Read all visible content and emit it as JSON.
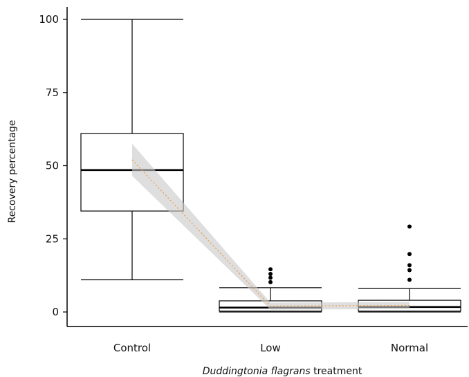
{
  "chart_data": {
    "type": "boxplot",
    "title": "",
    "xlabel_italic": "Duddingtonia flagrans",
    "xlabel_rest": " treatment",
    "ylabel": "Recovery percentage",
    "ylim": [
      0,
      100
    ],
    "yticks": [
      0,
      25,
      50,
      75,
      100
    ],
    "categories": [
      "Control",
      "Low",
      "Normal"
    ],
    "boxes": [
      {
        "category": "Control",
        "whisker_low": 11,
        "q1": 34.5,
        "median": 48.5,
        "q3": 61,
        "whisker_high": 100,
        "outliers": []
      },
      {
        "category": "Low",
        "whisker_low": 0,
        "q1": 0.3,
        "median": 1.5,
        "q3": 3.8,
        "whisker_high": 8.3,
        "outliers": [
          10.2,
          11.7,
          13,
          14.6
        ]
      },
      {
        "category": "Normal",
        "whisker_low": 0,
        "q1": 0.3,
        "median": 1.7,
        "q3": 4,
        "whisker_high": 8,
        "outliers": [
          11,
          14.3,
          16,
          19.8,
          29.2
        ]
      }
    ],
    "trend": {
      "values": [
        52,
        2,
        2.2
      ],
      "ci_low": [
        46.5,
        0.8,
        1
      ],
      "ci_high": [
        57.5,
        3.2,
        3.4
      ],
      "line_color": "#f0a050",
      "band_color": "#c8c8c8"
    },
    "grid": false
  }
}
